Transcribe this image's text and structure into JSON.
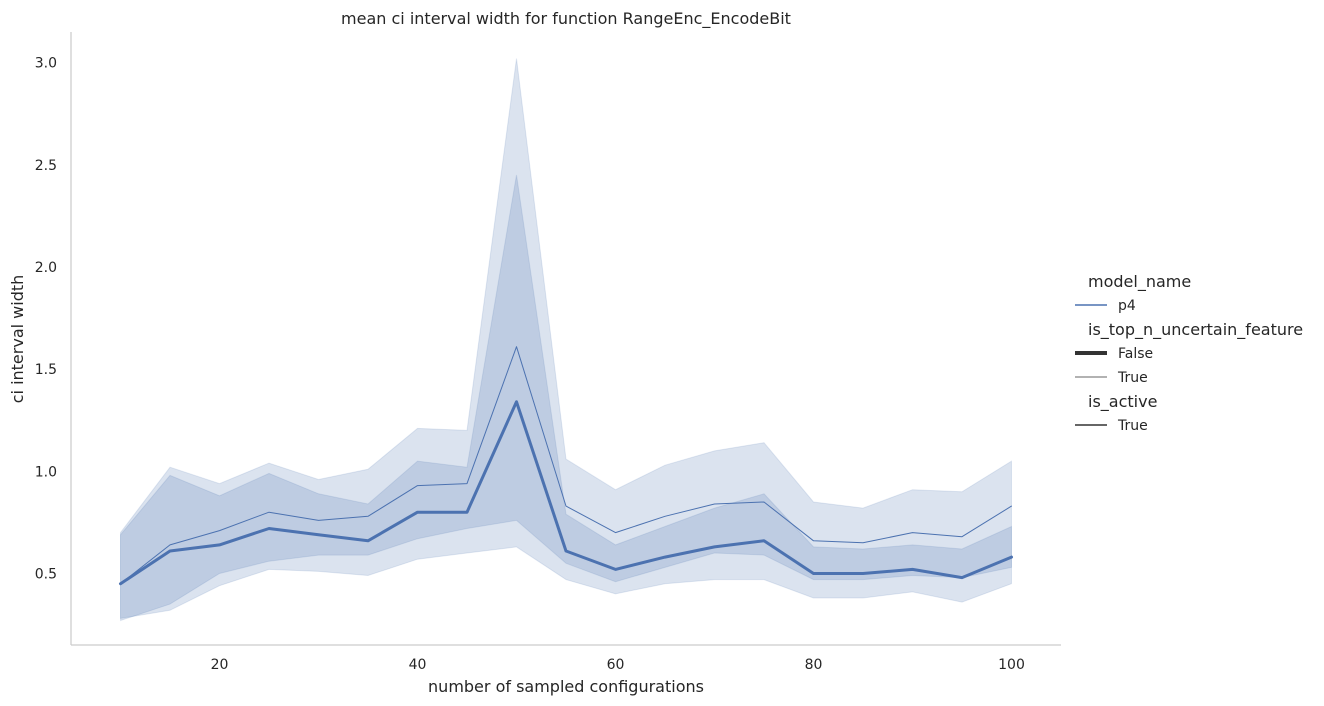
{
  "chart_data": {
    "type": "line",
    "title": "mean ci interval width for function RangeEnc_EncodeBit",
    "xlabel": "number of sampled configurations",
    "ylabel": "ci interval width",
    "xlim": [
      5,
      105
    ],
    "ylim": [
      0.15,
      3.15
    ],
    "xticks": [
      20,
      40,
      60,
      80,
      100
    ],
    "yticks": [
      0.5,
      1.0,
      1.5,
      2.0,
      2.5,
      3.0
    ],
    "ytick_labels": [
      "0.5",
      "1.0",
      "1.5",
      "2.0",
      "2.5",
      "3.0"
    ],
    "grid": false,
    "legend_position": "right",
    "x": [
      10,
      15,
      20,
      25,
      30,
      35,
      40,
      45,
      50,
      55,
      60,
      65,
      70,
      75,
      80,
      85,
      90,
      95,
      100
    ],
    "series": [
      {
        "name": "True",
        "values": [
          0.45,
          0.64,
          0.71,
          0.8,
          0.76,
          0.78,
          0.93,
          0.94,
          1.61,
          0.83,
          0.7,
          0.78,
          0.84,
          0.85,
          0.66,
          0.65,
          0.7,
          0.68,
          0.83
        ],
        "ci_low": [
          0.28,
          0.32,
          0.44,
          0.52,
          0.51,
          0.49,
          0.57,
          0.6,
          0.63,
          0.47,
          0.4,
          0.45,
          0.47,
          0.47,
          0.38,
          0.38,
          0.41,
          0.36,
          0.45
        ],
        "ci_high": [
          0.7,
          1.02,
          0.94,
          1.04,
          0.96,
          1.01,
          1.21,
          1.2,
          3.02,
          1.06,
          0.91,
          1.03,
          1.1,
          1.14,
          0.85,
          0.82,
          0.91,
          0.9,
          1.05
        ],
        "line_width": 1,
        "color": "#4c72b0"
      },
      {
        "name": "False",
        "values": [
          0.45,
          0.61,
          0.64,
          0.72,
          0.69,
          0.66,
          0.8,
          0.8,
          1.34,
          0.61,
          0.52,
          0.58,
          0.63,
          0.66,
          0.5,
          0.5,
          0.52,
          0.48,
          0.58
        ],
        "ci_low": [
          0.27,
          0.35,
          0.5,
          0.56,
          0.59,
          0.59,
          0.67,
          0.72,
          0.76,
          0.55,
          0.46,
          0.53,
          0.6,
          0.59,
          0.47,
          0.47,
          0.49,
          0.48,
          0.53
        ],
        "ci_high": [
          0.69,
          0.98,
          0.88,
          0.99,
          0.89,
          0.84,
          1.05,
          1.02,
          2.45,
          0.79,
          0.64,
          0.73,
          0.82,
          0.89,
          0.63,
          0.62,
          0.64,
          0.62,
          0.73
        ],
        "line_width": 3,
        "color": "#4c72b0"
      }
    ],
    "legend": [
      {
        "kind": "title",
        "text": "model_name"
      },
      {
        "kind": "entry",
        "text": "p4",
        "line_width": 1.5,
        "color": "#4c72b0"
      },
      {
        "kind": "title",
        "text": "is_top_n_uncertain_feature"
      },
      {
        "kind": "entry",
        "text": "False",
        "line_width": 4,
        "color": "#333333"
      },
      {
        "kind": "entry",
        "text": "True",
        "line_width": 0.8,
        "color": "#333333"
      },
      {
        "kind": "title",
        "text": "is_active"
      },
      {
        "kind": "entry",
        "text": "True",
        "line_width": 1.5,
        "color": "#333333"
      }
    ]
  }
}
